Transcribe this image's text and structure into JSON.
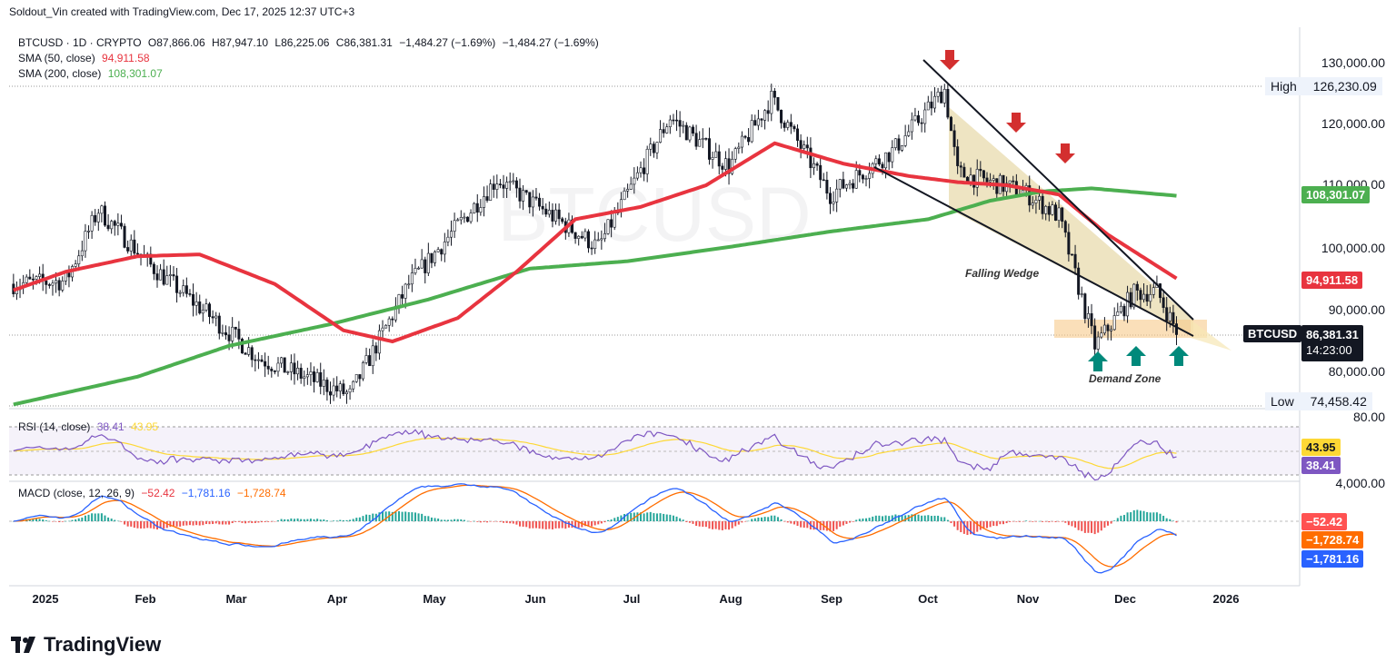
{
  "header": {
    "attribution": "Soldout_Vin created with TradingView.com, Dec 17, 2025 12:37 UTC+3"
  },
  "legend": {
    "symbol_line": {
      "symbol": "BTCUSD · 1D · CRYPTO",
      "o": "O87,866.06",
      "h": "H87,947.10",
      "l": "L86,225.06",
      "c": "C86,381.31",
      "chg": "−1,484.27 (−1.69%)",
      "chg2": "−1,484.27 (−1.69%)"
    },
    "sma50": {
      "label": "SMA (50, close)",
      "value": "94,911.58"
    },
    "sma200": {
      "label": "SMA (200, close)",
      "value": "108,301.07"
    },
    "rsi": {
      "label": "RSI (14, close)",
      "value": "38.41",
      "value2": "43.95"
    },
    "macd": {
      "label": "MACD (close, 12, 26, 9)",
      "v1": "−52.42",
      "v2": "−1,781.16",
      "v3": "−1,728.74"
    }
  },
  "watermark": "BTCUSD",
  "price_axis": {
    "ticks": [
      "130,000.00",
      "120,000.00",
      "110,000.00",
      "100,000.00",
      "90,000.00",
      "80,000.00"
    ],
    "high_label": "High",
    "high_value": "126,230.09",
    "low_label": "Low",
    "low_value": "74,458.42",
    "sma200_tag": "108,301.07",
    "sma50_tag": "94,911.58",
    "symbol_tag": "BTCUSD",
    "price_tag": "86,381.31",
    "countdown": "14:23:00"
  },
  "rsi_axis": {
    "top": "80.00",
    "tag1": "43.95",
    "tag2": "38.41"
  },
  "macd_axis": {
    "top": "4,000.00",
    "tag1": "−52.42",
    "tag2": "−1,728.74",
    "tag3": "−1,781.16"
  },
  "time_axis": [
    "2025",
    "Feb",
    "Mar",
    "Apr",
    "May",
    "Jun",
    "Jul",
    "Aug",
    "Sep",
    "Oct",
    "Nov",
    "Dec",
    "2026"
  ],
  "annotations": {
    "wedge": "Falling Wedge",
    "demand": "Demand Zone"
  },
  "brand": "TradingView",
  "colors": {
    "up": "#131722",
    "down": "#131722",
    "sma50": "#e8343f",
    "sma200": "#4caf50",
    "rsi": "#7e57c2",
    "rsi_ma": "#fdd835",
    "macd": "#2962ff",
    "signal": "#ff6d00",
    "arrow_down": "#d32f2f",
    "arrow_up": "#00897b",
    "wedge_fill": "#e7d9a8",
    "zone": "#f7c98b"
  },
  "chart_data": {
    "type": "line",
    "title": "BTCUSD · 1D · CRYPTO",
    "series": [
      {
        "name": "SMA (50, close)",
        "x": [
          "2024-12-25",
          "2025-01-10",
          "2025-02-01",
          "2025-02-20",
          "2025-03-15",
          "2025-04-05",
          "2025-04-20",
          "2025-05-10",
          "2025-05-28",
          "2025-06-15",
          "2025-07-05",
          "2025-07-25",
          "2025-08-15",
          "2025-09-05",
          "2025-09-25",
          "2025-10-10",
          "2025-10-25",
          "2025-11-10",
          "2025-11-25",
          "2025-12-16"
        ],
        "values": [
          93000,
          96000,
          98500,
          98800,
          94000,
          86500,
          84700,
          88500,
          96000,
          104500,
          106500,
          110000,
          116800,
          113500,
          111500,
          110500,
          110000,
          108500,
          102000,
          94911.58
        ]
      },
      {
        "name": "SMA (200, close)",
        "x": [
          "2024-12-25",
          "2025-02-01",
          "2025-03-01",
          "2025-04-01",
          "2025-05-01",
          "2025-06-01",
          "2025-07-01",
          "2025-08-01",
          "2025-09-01",
          "2025-10-01",
          "2025-10-20",
          "2025-11-05",
          "2025-11-20",
          "2025-12-16"
        ],
        "values": [
          74500,
          79000,
          84000,
          87500,
          91500,
          96500,
          97700,
          100000,
          102500,
          104500,
          107500,
          109000,
          109500,
          108301.07
        ]
      },
      {
        "name": "BTCUSD close",
        "x": [
          "2024-12-25",
          "2025-01-10",
          "2025-01-20",
          "2025-02-05",
          "2025-02-25",
          "2025-03-10",
          "2025-04-07",
          "2025-04-25",
          "2025-05-22",
          "2025-06-22",
          "2025-07-14",
          "2025-08-01",
          "2025-08-14",
          "2025-09-01",
          "2025-09-20",
          "2025-10-06",
          "2025-10-10",
          "2025-10-30",
          "2025-11-10",
          "2025-11-21",
          "2025-12-03",
          "2025-12-10",
          "2025-12-16"
        ],
        "values": [
          94000,
          94500,
          106000,
          97000,
          88000,
          82000,
          76000,
          94000,
          111000,
          100000,
          121000,
          113000,
          124000,
          108500,
          115500,
          125500,
          112000,
          109000,
          105000,
          84000,
          92500,
          92800,
          86381.31
        ]
      }
    ],
    "ylim": [
      74458.42,
      130000
    ],
    "high": 126230.09,
    "low": 74458.42,
    "grid": true,
    "legend_position": "top-left"
  }
}
